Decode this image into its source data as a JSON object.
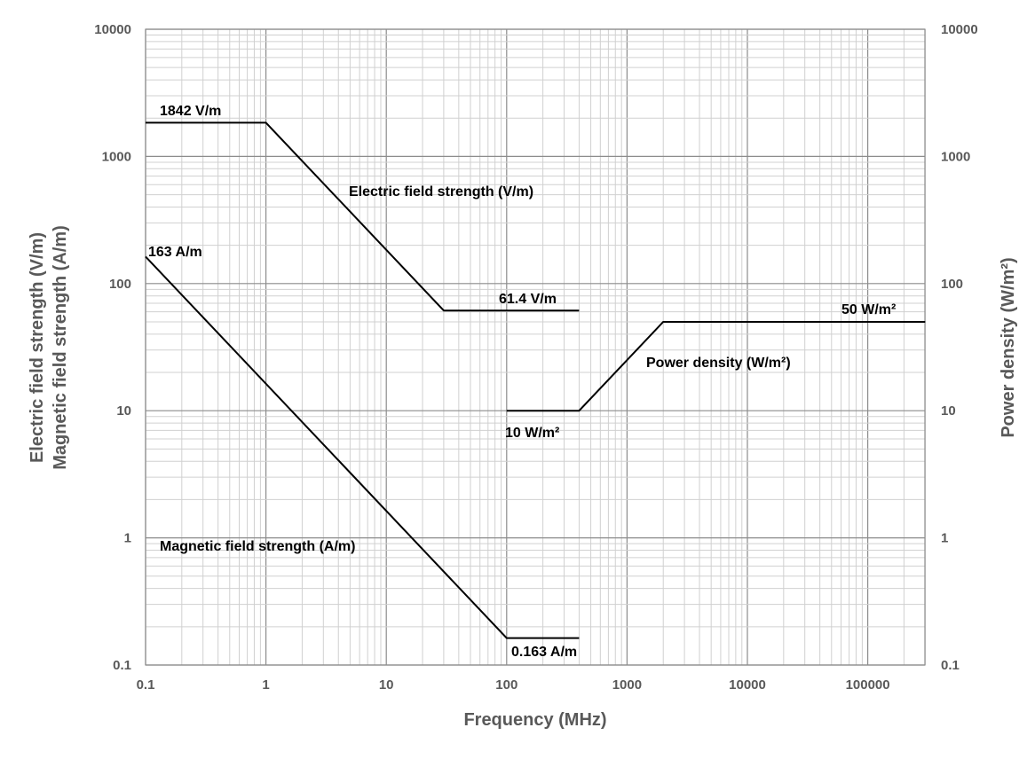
{
  "chart_data": {
    "type": "line",
    "xscale": "log",
    "yscale": "log",
    "xlim": [
      0.1,
      300000
    ],
    "ylim": [
      0.1,
      10000
    ],
    "y2lim": [
      0.1,
      10000
    ],
    "grid": true,
    "xlabel": "Frequency (MHz)",
    "ylabel_lines": [
      "Electric field strength (V/m)",
      "Magnetic field strength (A/m)"
    ],
    "y2label": "Power density (W/m²)",
    "x_ticks": [
      "0.1",
      "1",
      "10",
      "100",
      "1000",
      "10000",
      "100000"
    ],
    "y_ticks": [
      "0.1",
      "1",
      "10",
      "100",
      "1000",
      "10000"
    ],
    "y2_ticks": [
      "0.1",
      "1",
      "10",
      "100",
      "1000",
      "10000"
    ],
    "series": [
      {
        "x": [
          0.1,
          1,
          30,
          400
        ],
        "y": [
          1842,
          1842,
          61.4,
          61.4
        ]
      },
      {
        "x": [
          0.1,
          100,
          400
        ],
        "y": [
          163,
          0.163,
          0.163
        ]
      },
      {
        "x": [
          100,
          400,
          2000,
          300000
        ],
        "y": [
          10,
          10,
          50,
          50
        ],
        "axis": "right"
      }
    ],
    "annotations": [
      "1842 V/m",
      "Electric field strength (V/m)",
      "163 A/m",
      "61.4 V/m",
      "50 W/m²",
      "Power density (W/m²)",
      "10 W/m²",
      "Magnetic field strength (A/m)",
      "0.163 A/m"
    ]
  }
}
